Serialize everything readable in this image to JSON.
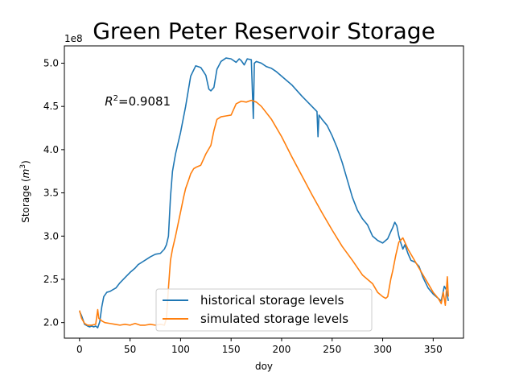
{
  "chart_data": {
    "type": "line",
    "title": "Green Peter Reservoir Storage",
    "xlabel": "doy",
    "ylabel": "Storage ($m^3$)",
    "ylabel_parts": {
      "pre": "Storage (",
      "var": "m",
      "sup": "3",
      "post": ")"
    },
    "y_offset_label": "1e8",
    "xlim": [
      -15,
      380
    ],
    "ylim": [
      1.82,
      5.2
    ],
    "x_ticks": [
      0,
      50,
      100,
      150,
      200,
      250,
      300,
      350
    ],
    "x_tick_labels": [
      "0",
      "50",
      "100",
      "150",
      "200",
      "250",
      "300",
      "350"
    ],
    "y_ticks": [
      2.0,
      2.5,
      3.0,
      3.5,
      4.0,
      4.5,
      5.0
    ],
    "y_tick_labels": [
      "2.0",
      "2.5",
      "3.0",
      "3.5",
      "4.0",
      "4.5",
      "5.0"
    ],
    "grid": false,
    "legend_placement": "lower-center",
    "annotation": {
      "text": "R^2=0.9081",
      "var": "R",
      "sup": "2",
      "rest": "=0.9081",
      "x": 25,
      "y": 4.5
    },
    "series": [
      {
        "name": "historical storage levels",
        "color": "#1f77b4",
        "x": [
          0,
          2,
          5,
          8,
          10,
          12,
          14,
          16,
          18,
          20,
          22,
          24,
          27,
          30,
          33,
          36,
          40,
          45,
          50,
          55,
          58,
          62,
          66,
          70,
          75,
          80,
          84,
          86,
          88,
          90,
          92,
          95,
          100,
          105,
          110,
          115,
          120,
          125,
          128,
          130,
          133,
          136,
          140,
          145,
          150,
          155,
          158,
          160,
          163,
          166,
          170,
          172,
          173,
          175,
          180,
          185,
          190,
          195,
          200,
          210,
          220,
          230,
          235,
          236,
          237,
          240,
          245,
          250,
          255,
          260,
          265,
          270,
          275,
          280,
          285,
          290,
          295,
          300,
          305,
          308,
          310,
          312,
          314,
          316,
          318,
          320,
          322,
          325,
          328,
          332,
          336,
          340,
          345,
          350,
          355,
          358,
          361,
          363,
          365
        ],
        "values": [
          2.13,
          2.08,
          1.98,
          1.96,
          1.95,
          1.96,
          1.95,
          1.96,
          1.94,
          2.01,
          2.18,
          2.3,
          2.35,
          2.36,
          2.38,
          2.4,
          2.46,
          2.52,
          2.58,
          2.63,
          2.67,
          2.7,
          2.73,
          2.76,
          2.79,
          2.8,
          2.85,
          2.9,
          3.0,
          3.45,
          3.75,
          3.95,
          4.2,
          4.5,
          4.85,
          4.97,
          4.95,
          4.86,
          4.7,
          4.68,
          4.72,
          4.93,
          5.02,
          5.06,
          5.05,
          5.01,
          5.05,
          5.03,
          4.98,
          5.05,
          5.04,
          4.36,
          5.0,
          5.02,
          5.0,
          4.96,
          4.94,
          4.9,
          4.85,
          4.75,
          4.62,
          4.5,
          4.44,
          4.15,
          4.4,
          4.35,
          4.28,
          4.16,
          4.02,
          3.85,
          3.65,
          3.45,
          3.3,
          3.2,
          3.13,
          3.0,
          2.95,
          2.92,
          2.97,
          3.05,
          3.1,
          3.16,
          3.12,
          3.0,
          2.92,
          2.85,
          2.9,
          2.8,
          2.72,
          2.7,
          2.65,
          2.52,
          2.4,
          2.33,
          2.28,
          2.25,
          2.42,
          2.38,
          2.25
        ]
      },
      {
        "name": "simulated storage levels",
        "color": "#ff7f0e",
        "x": [
          0,
          2,
          5,
          8,
          12,
          16,
          18,
          19,
          20,
          22,
          25,
          30,
          35,
          40,
          45,
          50,
          55,
          60,
          65,
          70,
          75,
          80,
          84,
          86,
          88,
          90,
          92,
          95,
          100,
          103,
          105,
          108,
          110,
          113,
          116,
          120,
          125,
          130,
          133,
          136,
          140,
          145,
          150,
          155,
          160,
          165,
          170,
          175,
          180,
          190,
          200,
          210,
          220,
          230,
          240,
          250,
          260,
          270,
          280,
          290,
          295,
          300,
          303,
          305,
          308,
          310,
          313,
          316,
          320,
          325,
          330,
          335,
          340,
          345,
          350,
          355,
          358,
          360,
          362,
          364,
          365
        ],
        "values": [
          2.14,
          2.05,
          1.99,
          1.97,
          1.97,
          1.98,
          2.15,
          2.05,
          2.04,
          2.02,
          2.0,
          1.99,
          1.98,
          1.97,
          1.98,
          1.97,
          1.99,
          1.97,
          1.97,
          1.98,
          1.97,
          1.98,
          1.97,
          2.05,
          2.4,
          2.72,
          2.85,
          3.0,
          3.28,
          3.45,
          3.55,
          3.65,
          3.72,
          3.78,
          3.8,
          3.82,
          3.95,
          4.05,
          4.22,
          4.35,
          4.38,
          4.39,
          4.4,
          4.53,
          4.56,
          4.55,
          4.57,
          4.55,
          4.5,
          4.35,
          4.15,
          3.92,
          3.7,
          3.48,
          3.27,
          3.07,
          2.88,
          2.72,
          2.55,
          2.45,
          2.35,
          2.3,
          2.28,
          2.3,
          2.5,
          2.6,
          2.78,
          2.93,
          2.98,
          2.85,
          2.75,
          2.65,
          2.55,
          2.45,
          2.35,
          2.28,
          2.22,
          2.35,
          2.2,
          2.53,
          2.3
        ]
      }
    ]
  }
}
